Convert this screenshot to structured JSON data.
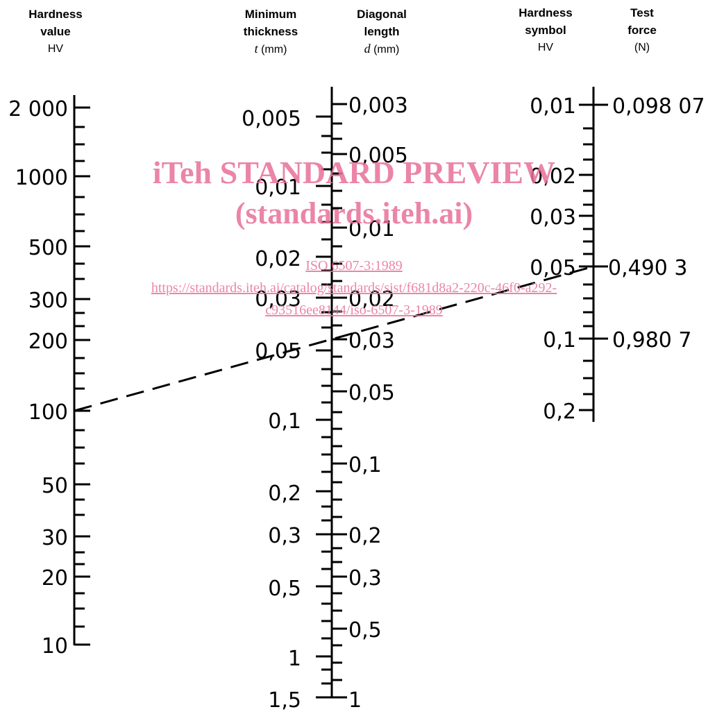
{
  "headers": {
    "hardness_value": {
      "line1": "Hardness",
      "line2": "value",
      "unit": "HV"
    },
    "minimum_thickness": {
      "line1": "Minimum",
      "line2": "thickness",
      "symbol": "t",
      "unit": "(mm)"
    },
    "diagonal_length": {
      "line1": "Diagonal",
      "line2": "length",
      "symbol": "d",
      "unit": "(mm)"
    },
    "hardness_symbol": {
      "line1": "Hardness",
      "line2": "symbol",
      "unit": "HV"
    },
    "test_force": {
      "line1": "Test",
      "line2": "force",
      "unit": "(N)"
    }
  },
  "scales": {
    "hardness_value": [
      "2 000",
      "1000",
      "500",
      "300",
      "200",
      "100",
      "50",
      "30",
      "20",
      "10"
    ],
    "minimum_thickness": [
      "0,005",
      "0,01",
      "0,02",
      "0,03",
      "0,05",
      "0,1",
      "0,2",
      "0,3",
      "0,5",
      "1",
      "1,5"
    ],
    "diagonal_length": [
      "0,003",
      "0,005",
      "0,01",
      "0,02",
      "0,03",
      "0,05",
      "0,1",
      "0,2",
      "0,3",
      "0,5",
      "1"
    ],
    "hardness_symbol": [
      "0,01",
      "0,02",
      "0,03",
      "0,05",
      "0,1",
      "0,2"
    ],
    "test_force": [
      "0,098 07",
      "0,490 3",
      "0,980 7"
    ]
  },
  "watermark": {
    "title": "iTeh STANDARD PREVIEW",
    "subtitle": "(standards.iteh.ai)",
    "doc": "ISO 6507-3:1989",
    "url1": "https://standards.iteh.ai/catalog/standards/sist/f681d8a2-220c-46f0-a292-",
    "url2": "c93516ee8144/iso-6507-3-1989"
  },
  "colors": {
    "ink": "#000000",
    "watermark": "#e8709a"
  }
}
